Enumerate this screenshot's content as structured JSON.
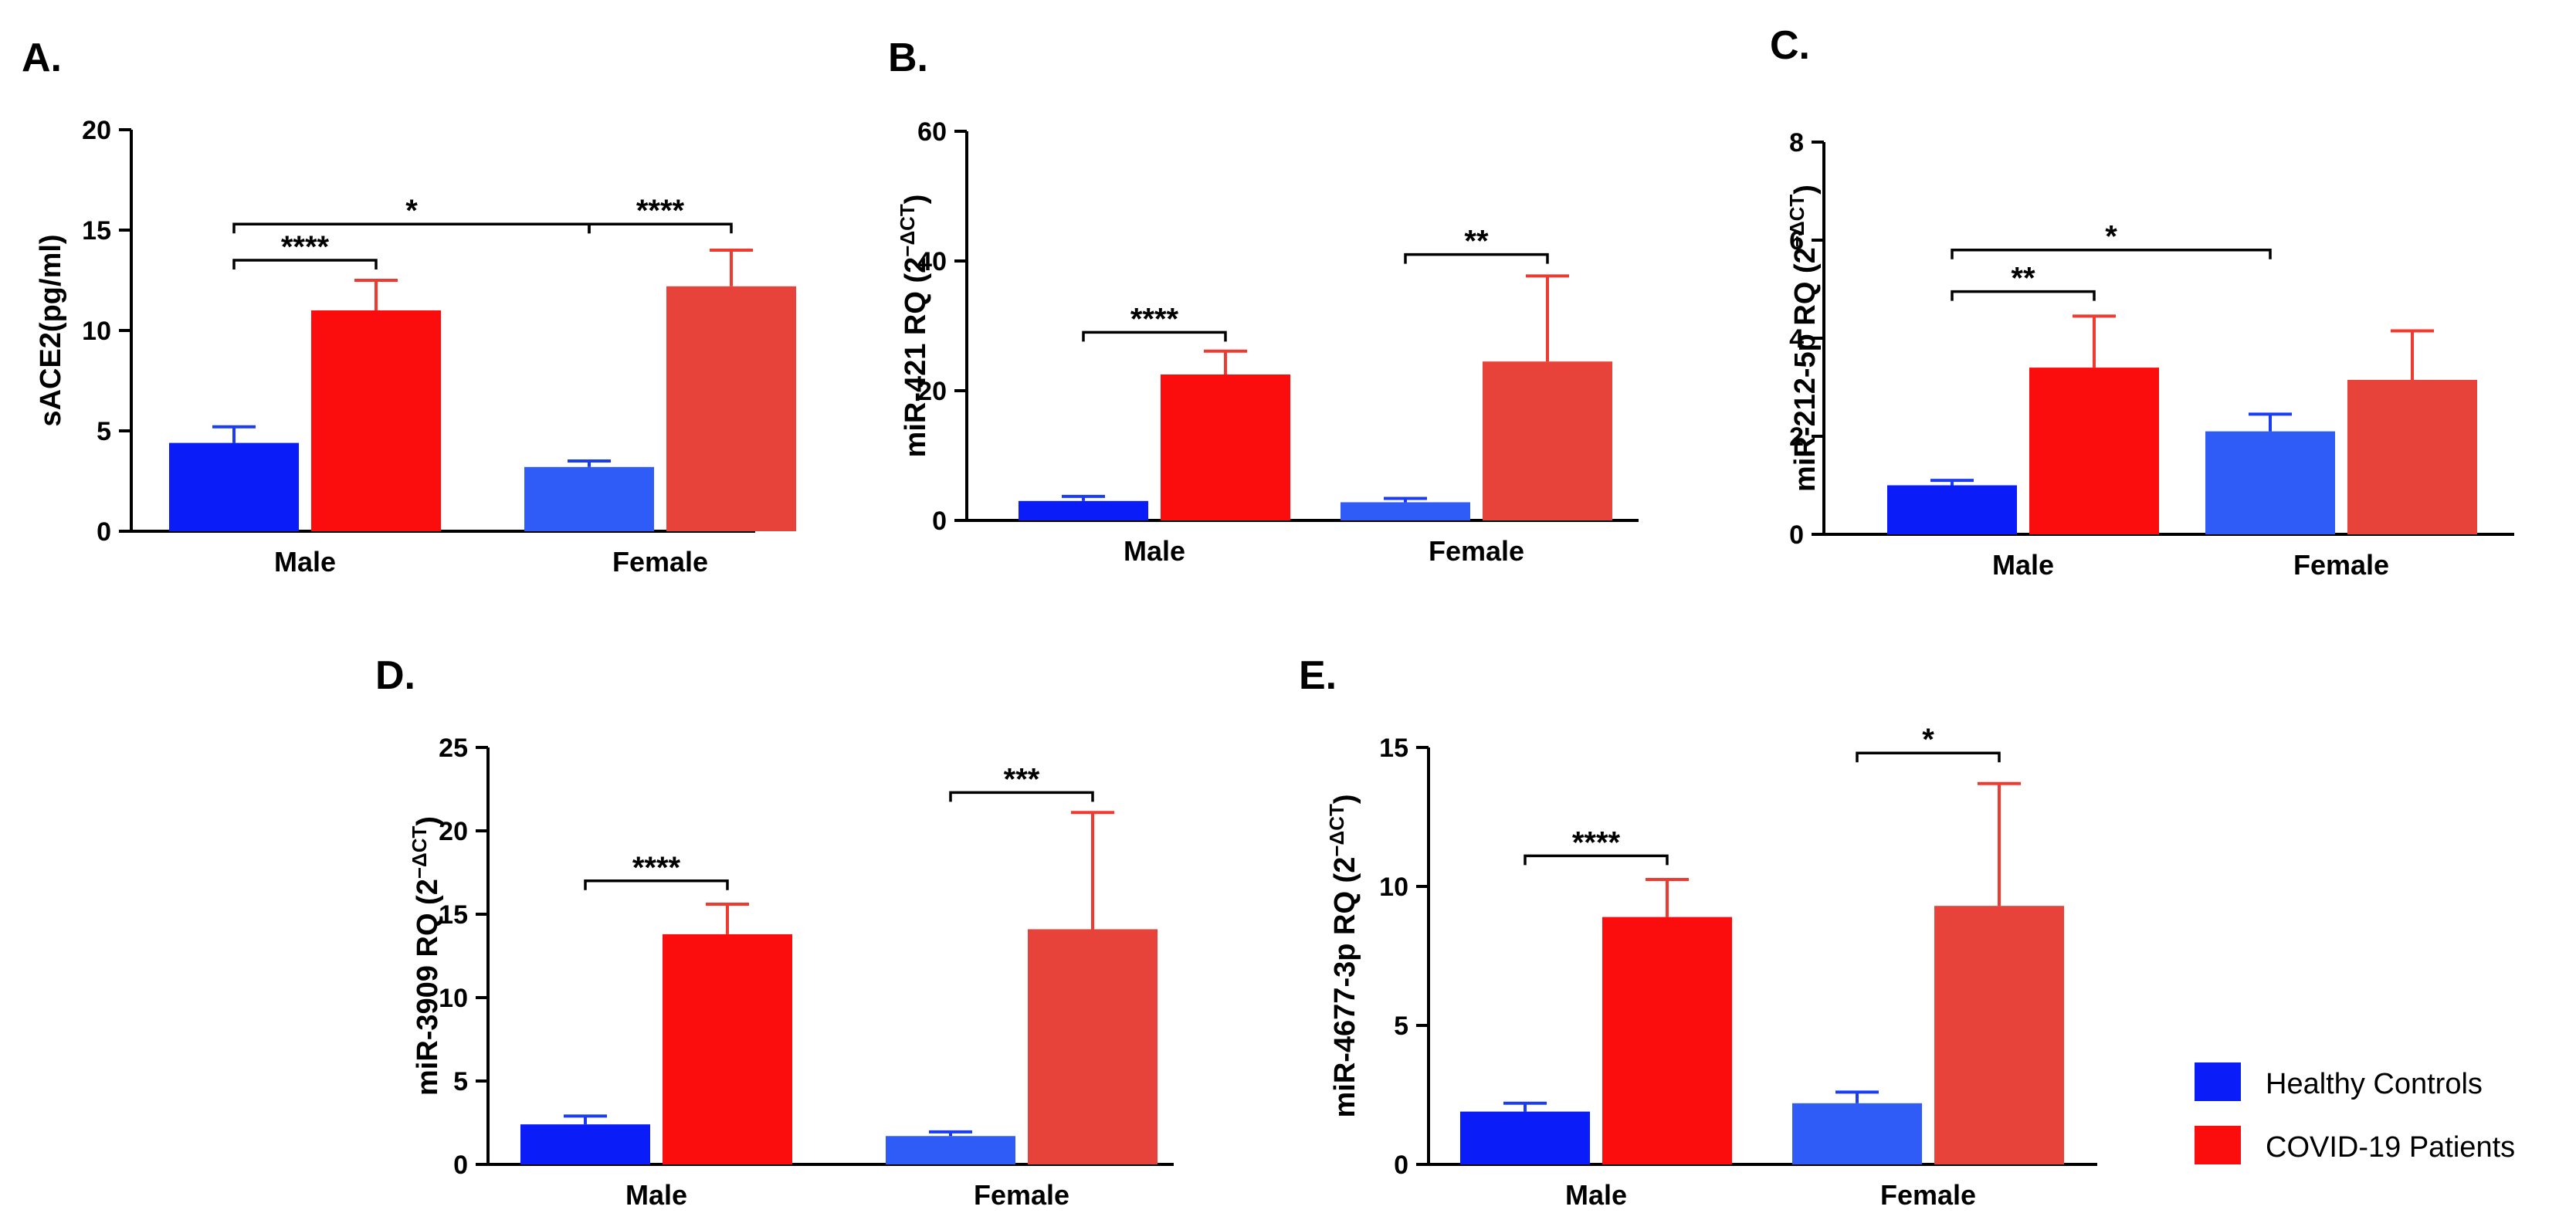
{
  "colors": {
    "male_control": "#0a1cf7",
    "female_control": "#2f5cf6",
    "male_patient": "#fc0d0d",
    "female_patient": "#e8433a",
    "error_control": "#1a3cf5",
    "error_patient": "#f03a30"
  },
  "legend": {
    "items": [
      {
        "label": "Healthy Controls",
        "color": "#0a1cf7"
      },
      {
        "label": "COVID-19 Patients",
        "color": "#fc0d0d"
      }
    ]
  },
  "chart_data": [
    {
      "panel": "A.",
      "type": "bar",
      "ylabel": "sACE2(pg/ml)",
      "ylabel_sup": "",
      "ylim": [
        0,
        20
      ],
      "yticks": [
        0,
        5,
        10,
        15,
        20
      ],
      "categories": [
        "Male",
        "Female"
      ],
      "series": [
        {
          "name": "Healthy Controls",
          "values": [
            4.4,
            3.2
          ],
          "errors": [
            0.8,
            0.3
          ]
        },
        {
          "name": "COVID-19 Patients",
          "values": [
            11.0,
            12.2
          ],
          "errors": [
            1.5,
            1.8
          ]
        }
      ],
      "annotations": [
        {
          "text": "****",
          "bars": [
            [
              0,
              0
            ],
            [
              0,
              1
            ]
          ],
          "level": 13.5
        },
        {
          "text": "*",
          "bars": [
            [
              0,
              0
            ],
            [
              1,
              0
            ]
          ],
          "level": 15.3
        },
        {
          "text": "****",
          "bars": [
            [
              1,
              0
            ],
            [
              1,
              1
            ]
          ],
          "level": 15.3
        }
      ]
    },
    {
      "panel": "B.",
      "type": "bar",
      "ylabel": "miR-421 RQ (2",
      "ylabel_sup": "−ΔCT",
      "ylim": [
        0,
        60
      ],
      "yticks": [
        0,
        20,
        40,
        60
      ],
      "categories": [
        "Male",
        "Female"
      ],
      "series": [
        {
          "name": "Healthy Controls",
          "values": [
            3.0,
            2.8
          ],
          "errors": [
            0.7,
            0.6
          ]
        },
        {
          "name": "COVID-19 Patients",
          "values": [
            22.5,
            24.5
          ],
          "errors": [
            3.6,
            13.2
          ]
        }
      ],
      "annotations": [
        {
          "text": "****",
          "bars": [
            [
              0,
              0
            ],
            [
              0,
              1
            ]
          ],
          "level": 29
        },
        {
          "text": "**",
          "bars": [
            [
              1,
              0
            ],
            [
              1,
              1
            ]
          ],
          "level": 41
        }
      ]
    },
    {
      "panel": "C.",
      "type": "bar",
      "ylabel": "miR-212-5p RQ (2",
      "ylabel_sup": "−ΔCT",
      "ylim": [
        0,
        8
      ],
      "yticks": [
        0,
        2,
        4,
        6,
        8
      ],
      "categories": [
        "Male",
        "Female"
      ],
      "series": [
        {
          "name": "Healthy Controls",
          "values": [
            1.0,
            2.1
          ],
          "errors": [
            0.1,
            0.35
          ]
        },
        {
          "name": "COVID-19 Patients",
          "values": [
            3.4,
            3.15
          ],
          "errors": [
            1.05,
            1.0
          ]
        }
      ],
      "annotations": [
        {
          "text": "**",
          "bars": [
            [
              0,
              0
            ],
            [
              0,
              1
            ]
          ],
          "level": 4.95
        },
        {
          "text": "*",
          "bars": [
            [
              0,
              0
            ],
            [
              1,
              0
            ]
          ],
          "level": 5.8
        }
      ]
    },
    {
      "panel": "D.",
      "type": "bar",
      "ylabel": "miR-3909 RQ (2",
      "ylabel_sup": "−ΔCT",
      "ylim": [
        0,
        25
      ],
      "yticks": [
        0,
        5,
        10,
        15,
        20,
        25
      ],
      "categories": [
        "Male",
        "Female"
      ],
      "series": [
        {
          "name": "Healthy Controls",
          "values": [
            2.4,
            1.7
          ],
          "errors": [
            0.5,
            0.25
          ]
        },
        {
          "name": "COVID-19 Patients",
          "values": [
            13.8,
            14.1
          ],
          "errors": [
            1.8,
            7.0
          ]
        }
      ],
      "annotations": [
        {
          "text": "****",
          "bars": [
            [
              0,
              0
            ],
            [
              0,
              1
            ]
          ],
          "level": 17
        },
        {
          "text": "***",
          "bars": [
            [
              1,
              0
            ],
            [
              1,
              1
            ]
          ],
          "level": 22.3
        }
      ]
    },
    {
      "panel": "E.",
      "type": "bar",
      "ylabel": "miR-4677-3p RQ (2",
      "ylabel_sup": "−ΔCT",
      "ylim": [
        0,
        15
      ],
      "yticks": [
        0,
        5,
        10,
        15
      ],
      "categories": [
        "Male",
        "Female"
      ],
      "series": [
        {
          "name": "Healthy Controls",
          "values": [
            1.9,
            2.2
          ],
          "errors": [
            0.3,
            0.4
          ]
        },
        {
          "name": "COVID-19 Patients",
          "values": [
            8.9,
            9.3
          ],
          "errors": [
            1.35,
            4.4
          ]
        }
      ],
      "annotations": [
        {
          "text": "****",
          "bars": [
            [
              0,
              0
            ],
            [
              0,
              1
            ]
          ],
          "level": 11.1
        },
        {
          "text": "*",
          "bars": [
            [
              1,
              0
            ],
            [
              1,
              1
            ]
          ],
          "level": 14.8
        }
      ]
    }
  ]
}
